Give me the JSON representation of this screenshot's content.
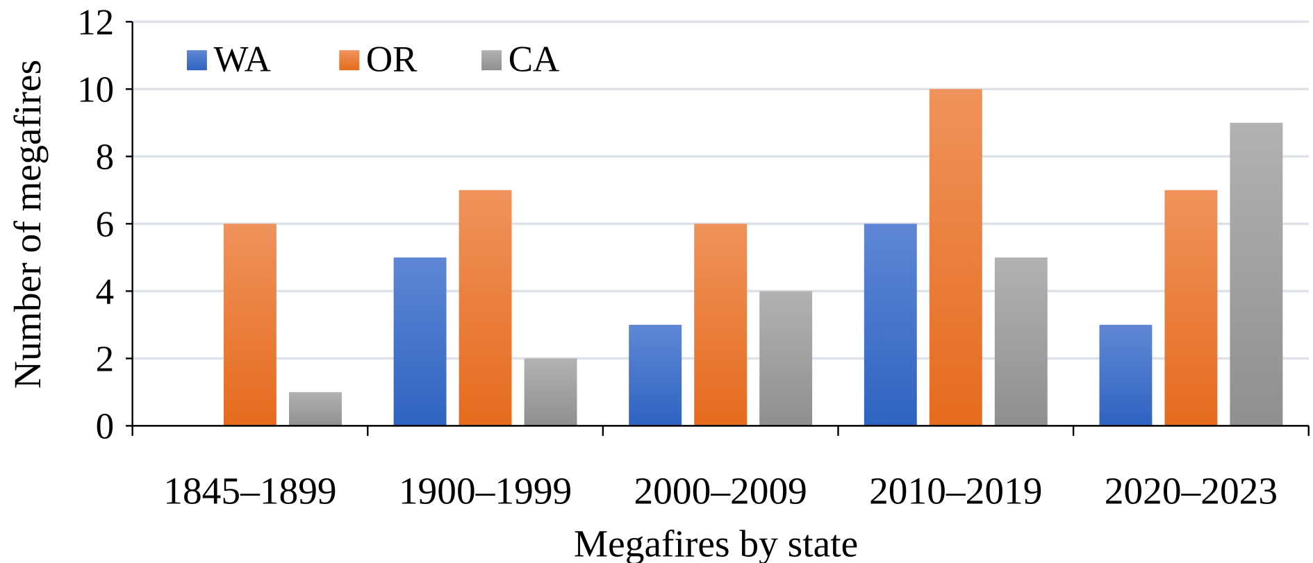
{
  "chart_data": {
    "type": "bar",
    "title": "",
    "xlabel": "Megafires by state",
    "ylabel": "Number of megafires",
    "ylim": [
      0,
      12
    ],
    "yticks": [
      0,
      2,
      4,
      6,
      8,
      10,
      12
    ],
    "grid": true,
    "legend_position": "top-left",
    "categories": [
      "1845–1899",
      "1900–1999",
      "2000–2009",
      "2010–2019",
      "2020–2023"
    ],
    "series": [
      {
        "name": "WA",
        "values": [
          0,
          5,
          3,
          6,
          3
        ],
        "color_top": "#5f87d4",
        "color_bottom": "#2f63c2"
      },
      {
        "name": "OR",
        "values": [
          6,
          7,
          6,
          10,
          7
        ],
        "color_top": "#f0925c",
        "color_bottom": "#e56b1d"
      },
      {
        "name": "CA",
        "values": [
          1,
          2,
          4,
          5,
          9
        ],
        "color_top": "#b2b2b2",
        "color_bottom": "#8f8f8f"
      }
    ]
  }
}
